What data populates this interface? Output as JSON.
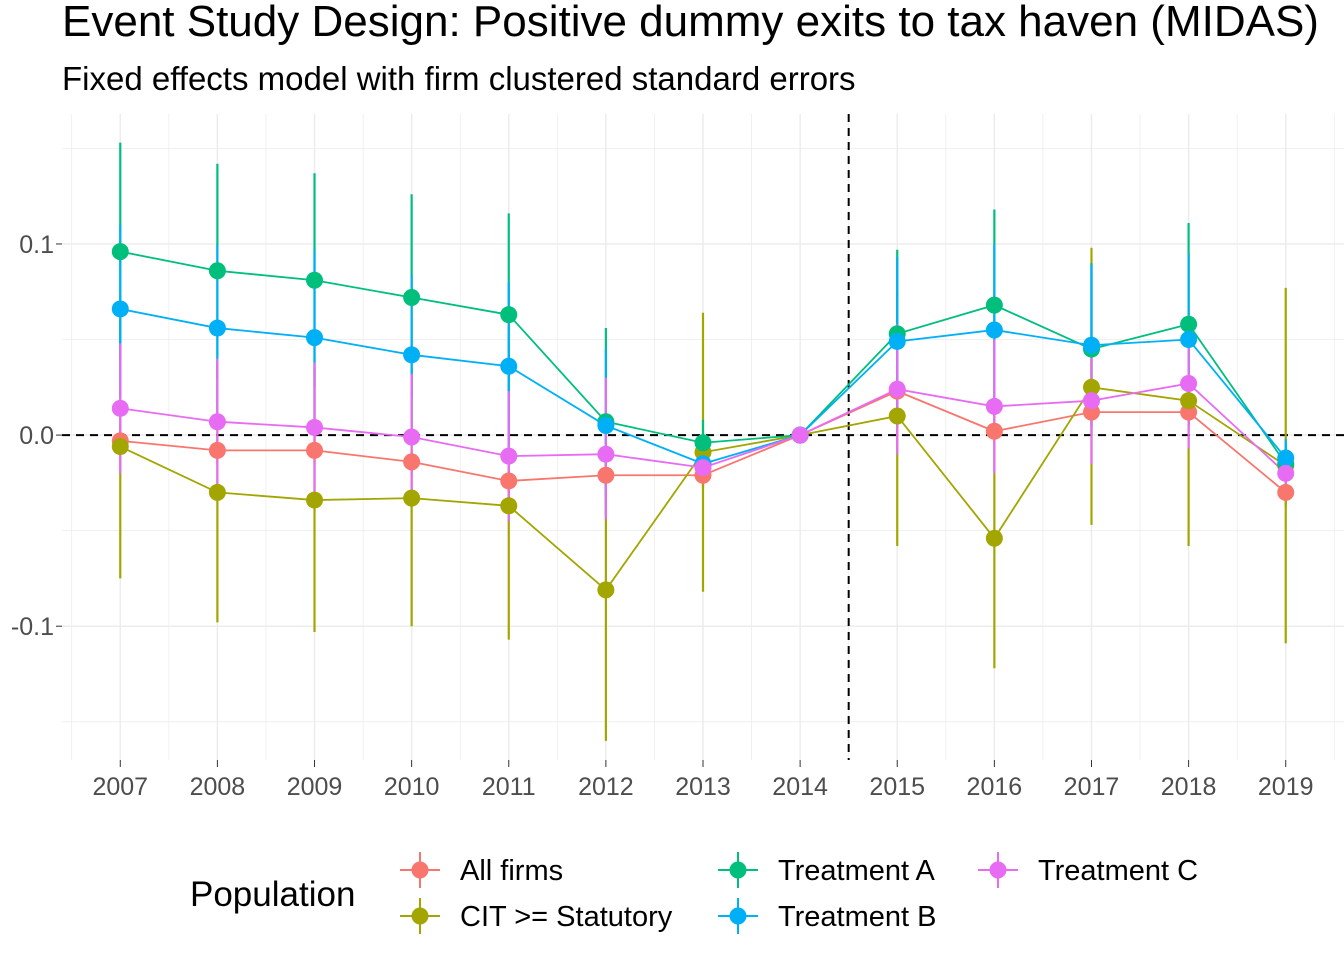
{
  "chart_data": {
    "type": "line",
    "title": "Event Study Design: Positive dummy exits to tax haven (MIDAS)",
    "subtitle": "Fixed effects model with firm clustered standard errors",
    "xlabel": "",
    "ylabel": "",
    "x": [
      "2007",
      "2008",
      "2009",
      "2010",
      "2011",
      "2012",
      "2013",
      "2014",
      "2015",
      "2016",
      "2017",
      "2018",
      "2019"
    ],
    "xlim": [
      2006.4,
      2019.6
    ],
    "ylim": [
      -0.17,
      0.168
    ],
    "yticks": [
      -0.1,
      0.0,
      0.1
    ],
    "ytick_labels": [
      "-0.1",
      "0.0",
      "0.1"
    ],
    "reference_lines": {
      "vertical_x": 2014.5,
      "horizontal_y": 0.0,
      "style": "dashed"
    },
    "grid": true,
    "legend": {
      "title": "Population",
      "placement": "bottom"
    },
    "series": [
      {
        "name": "All firms",
        "color": "#F8766D",
        "values": [
          -0.003,
          -0.008,
          -0.008,
          -0.014,
          -0.024,
          -0.021,
          -0.021,
          0.0,
          0.023,
          0.002,
          0.012,
          0.012,
          -0.03
        ],
        "ci_low": [
          -0.01,
          -0.015,
          -0.015,
          -0.02,
          -0.03,
          -0.028,
          -0.028,
          0.0,
          0.016,
          -0.005,
          0.005,
          0.005,
          -0.037
        ],
        "ci_high": [
          0.004,
          -0.001,
          -0.001,
          -0.008,
          -0.018,
          -0.014,
          -0.014,
          0.0,
          0.03,
          0.009,
          0.019,
          0.019,
          -0.023
        ]
      },
      {
        "name": "CIT >= Statutory",
        "color": "#A3A500",
        "values": [
          -0.006,
          -0.03,
          -0.034,
          -0.033,
          -0.037,
          -0.081,
          -0.009,
          0.0,
          0.01,
          -0.054,
          0.025,
          0.018,
          -0.016
        ],
        "ci_low": [
          -0.075,
          -0.098,
          -0.103,
          -0.1,
          -0.107,
          -0.16,
          -0.082,
          0.0,
          -0.058,
          -0.122,
          -0.047,
          -0.058,
          -0.109
        ],
        "ci_high": [
          0.06,
          0.038,
          0.035,
          0.035,
          0.034,
          -0.002,
          0.064,
          0.0,
          0.075,
          0.015,
          0.098,
          0.095,
          0.077
        ]
      },
      {
        "name": "Treatment A",
        "color": "#00BF7D",
        "values": [
          0.096,
          0.086,
          0.081,
          0.072,
          0.063,
          0.007,
          -0.004,
          0.0,
          0.053,
          0.068,
          0.045,
          0.058,
          -0.015
        ],
        "ci_low": [
          0.04,
          0.03,
          0.025,
          0.02,
          0.008,
          -0.042,
          -0.015,
          0.0,
          0.008,
          0.018,
          0.0,
          0.006,
          -0.025
        ],
        "ci_high": [
          0.153,
          0.142,
          0.137,
          0.126,
          0.116,
          0.056,
          0.008,
          0.0,
          0.097,
          0.118,
          0.09,
          0.111,
          -0.005
        ]
      },
      {
        "name": "Treatment B",
        "color": "#00B0F6",
        "values": [
          0.066,
          0.056,
          0.051,
          0.042,
          0.036,
          0.005,
          -0.015,
          0.0,
          0.049,
          0.055,
          0.047,
          0.05,
          -0.012
        ],
        "ci_low": [
          0.02,
          0.01,
          0.005,
          0.0,
          -0.008,
          -0.035,
          -0.025,
          0.0,
          0.005,
          0.01,
          0.005,
          0.005,
          -0.022
        ],
        "ci_high": [
          0.11,
          0.1,
          0.097,
          0.084,
          0.08,
          0.045,
          -0.005,
          0.0,
          0.093,
          0.1,
          0.089,
          0.095,
          -0.002
        ]
      },
      {
        "name": "Treatment C",
        "color": "#E76BF3",
        "values": [
          0.014,
          0.007,
          0.004,
          -0.001,
          -0.011,
          -0.01,
          -0.017,
          0.0,
          0.024,
          0.015,
          0.018,
          0.027,
          -0.02
        ],
        "ci_low": [
          -0.02,
          -0.026,
          -0.03,
          -0.034,
          -0.045,
          -0.044,
          -0.025,
          0.0,
          -0.01,
          -0.02,
          -0.015,
          -0.007,
          -0.03
        ],
        "ci_high": [
          0.048,
          0.04,
          0.038,
          0.032,
          0.023,
          0.03,
          -0.009,
          0.0,
          0.058,
          0.05,
          0.051,
          0.061,
          -0.01
        ]
      }
    ]
  }
}
